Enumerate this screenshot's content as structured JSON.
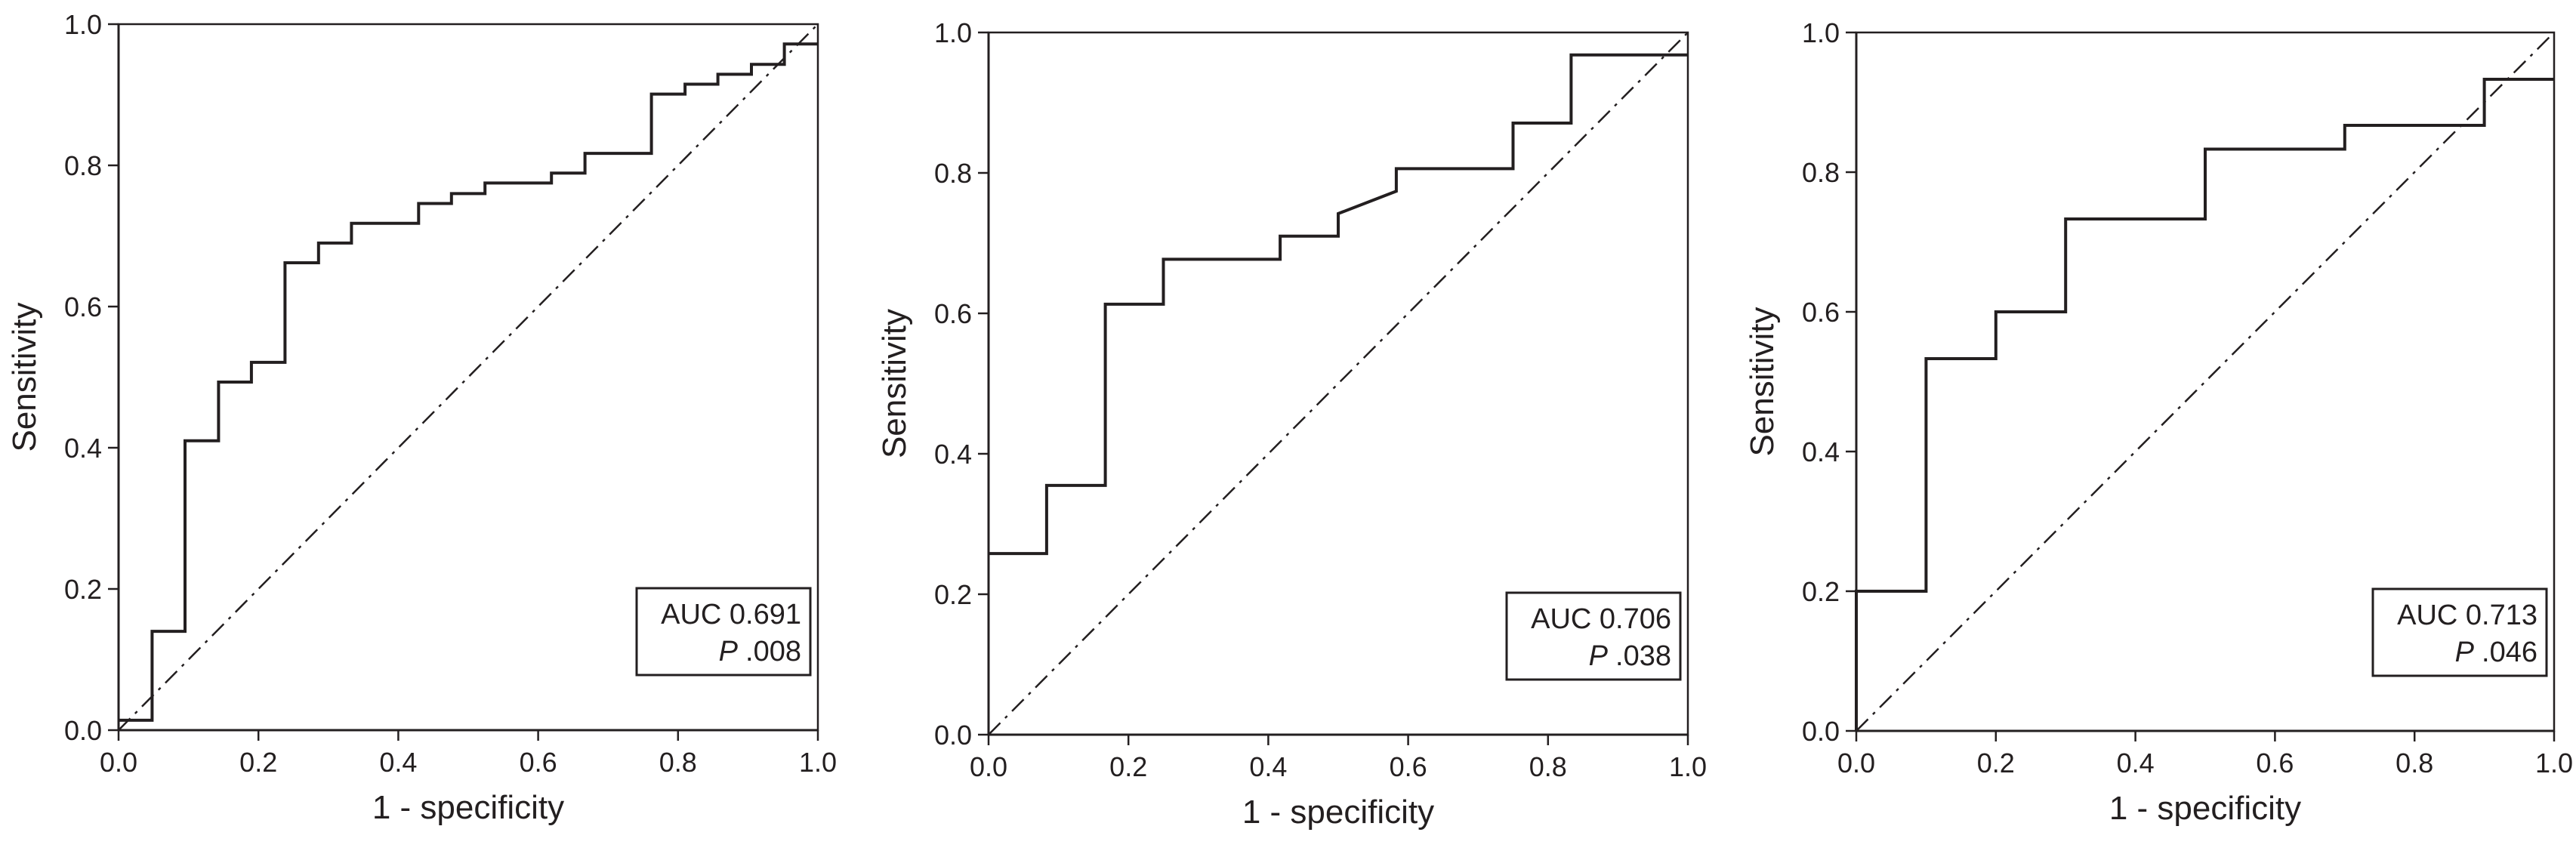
{
  "chart_data": [
    {
      "type": "line",
      "xlabel": "1 - specificity",
      "ylabel": "Sensitivity",
      "xlim": [
        0,
        1
      ],
      "ylim": [
        0,
        1
      ],
      "x_ticks": [
        "0.0",
        "0.2",
        "0.4",
        "0.6",
        "0.8",
        "1.0"
      ],
      "y_ticks": [
        "0.0",
        "0.2",
        "0.4",
        "0.6",
        "0.8",
        "1.0"
      ],
      "auc_label": "AUC 0.691",
      "p_italic": "P",
      "p_value": ".008",
      "reference_line": "diagonal",
      "roc": [
        [
          0.0,
          0.014
        ],
        [
          0.048,
          0.014
        ],
        [
          0.048,
          0.14
        ],
        [
          0.095,
          0.14
        ],
        [
          0.095,
          0.41
        ],
        [
          0.143,
          0.41
        ],
        [
          0.143,
          0.493
        ],
        [
          0.19,
          0.493
        ],
        [
          0.19,
          0.521
        ],
        [
          0.238,
          0.521
        ],
        [
          0.238,
          0.662
        ],
        [
          0.286,
          0.662
        ],
        [
          0.286,
          0.69
        ],
        [
          0.333,
          0.69
        ],
        [
          0.333,
          0.718
        ],
        [
          0.429,
          0.718
        ],
        [
          0.429,
          0.746
        ],
        [
          0.476,
          0.746
        ],
        [
          0.476,
          0.76
        ],
        [
          0.524,
          0.76
        ],
        [
          0.524,
          0.775
        ],
        [
          0.619,
          0.775
        ],
        [
          0.619,
          0.789
        ],
        [
          0.667,
          0.789
        ],
        [
          0.667,
          0.817
        ],
        [
          0.762,
          0.817
        ],
        [
          0.762,
          0.901
        ],
        [
          0.81,
          0.901
        ],
        [
          0.81,
          0.915
        ],
        [
          0.857,
          0.915
        ],
        [
          0.857,
          0.929
        ],
        [
          0.905,
          0.929
        ],
        [
          0.905,
          0.943
        ],
        [
          0.952,
          0.943
        ],
        [
          0.952,
          0.972
        ],
        [
          1.0,
          0.972
        ]
      ]
    },
    {
      "type": "line",
      "xlabel": "1 - specificity",
      "ylabel": "Sensitivity",
      "xlim": [
        0,
        1
      ],
      "ylim": [
        0,
        1
      ],
      "x_ticks": [
        "0.0",
        "0.2",
        "0.4",
        "0.6",
        "0.8",
        "1.0"
      ],
      "y_ticks": [
        "0.0",
        "0.2",
        "0.4",
        "0.6",
        "0.8",
        "1.0"
      ],
      "auc_label": "AUC 0.706",
      "p_italic": "P",
      "p_value": ".038",
      "reference_line": "diagonal",
      "roc": [
        [
          0.0,
          0.258
        ],
        [
          0.083,
          0.258
        ],
        [
          0.083,
          0.355
        ],
        [
          0.167,
          0.355
        ],
        [
          0.167,
          0.613
        ],
        [
          0.25,
          0.613
        ],
        [
          0.25,
          0.677
        ],
        [
          0.417,
          0.677
        ],
        [
          0.417,
          0.71
        ],
        [
          0.5,
          0.71
        ],
        [
          0.5,
          0.742
        ],
        [
          0.583,
          0.774
        ],
        [
          0.583,
          0.806
        ],
        [
          0.75,
          0.806
        ],
        [
          0.75,
          0.871
        ],
        [
          0.833,
          0.871
        ],
        [
          0.833,
          0.968
        ],
        [
          1.0,
          0.968
        ]
      ]
    },
    {
      "type": "line",
      "xlabel": "1 - specificity",
      "ylabel": "Sensitivity",
      "xlim": [
        0,
        1
      ],
      "ylim": [
        0,
        1
      ],
      "x_ticks": [
        "0.0",
        "0.2",
        "0.4",
        "0.6",
        "0.8",
        "1.0"
      ],
      "y_ticks": [
        "0.0",
        "0.2",
        "0.4",
        "0.6",
        "0.8",
        "1.0"
      ],
      "auc_label": "AUC 0.713",
      "p_italic": "P",
      "p_value": ".046",
      "reference_line": "diagonal",
      "roc": [
        [
          0.0,
          0.0
        ],
        [
          0.0,
          0.2
        ],
        [
          0.1,
          0.2
        ],
        [
          0.1,
          0.533
        ],
        [
          0.2,
          0.533
        ],
        [
          0.2,
          0.6
        ],
        [
          0.3,
          0.6
        ],
        [
          0.3,
          0.733
        ],
        [
          0.5,
          0.733
        ],
        [
          0.5,
          0.833
        ],
        [
          0.7,
          0.833
        ],
        [
          0.7,
          0.867
        ],
        [
          0.9,
          0.867
        ],
        [
          0.9,
          0.933
        ],
        [
          1.0,
          0.933
        ]
      ]
    }
  ]
}
